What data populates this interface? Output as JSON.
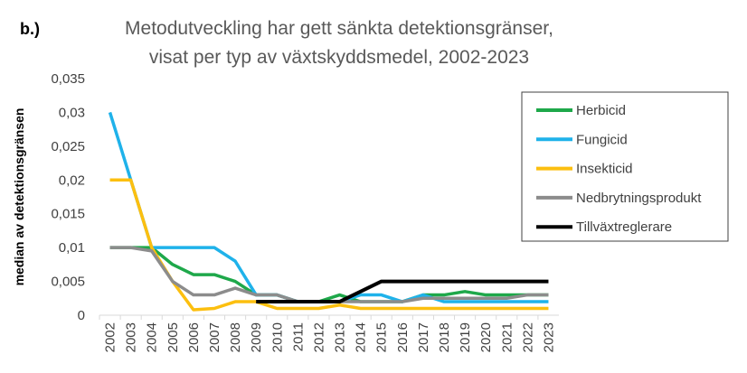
{
  "chart_data": {
    "type": "line",
    "panel_label": "b.)",
    "title_lines": [
      "Metodutveckling har gett sänkta detektionsgränser,",
      "visat per typ av växtskyddsmedel, 2002-2023"
    ],
    "y_label": "median av detektionsgränsen",
    "categories": [
      "2002",
      "2003",
      "2004",
      "2005",
      "2006",
      "2007",
      "2008",
      "2009",
      "2010",
      "2011",
      "2012",
      "2013",
      "2014",
      "2015",
      "2016",
      "2017",
      "2018",
      "2019",
      "2020",
      "2021",
      "2022",
      "2023"
    ],
    "ylim": [
      0,
      0.035
    ],
    "yticks": [
      0,
      {
        "value": 0.005,
        "label": "0,005"
      },
      {
        "value": 0.01,
        "label": "0,01"
      },
      {
        "value": 0.015,
        "label": "0,015"
      },
      {
        "value": 0.02,
        "label": "0,02"
      },
      {
        "value": 0.025,
        "label": "0,025"
      },
      {
        "value": 0.03,
        "label": "0,03"
      },
      {
        "value": 0.035,
        "label": "0,035"
      }
    ],
    "grid": false,
    "legend": "right",
    "series": [
      {
        "name": "Herbicid",
        "color": "#1ea84a",
        "values": [
          0.01,
          0.01,
          0.01,
          0.0075,
          0.006,
          0.006,
          0.005,
          0.003,
          0.003,
          0.002,
          0.002,
          0.003,
          0.002,
          0.002,
          0.002,
          0.003,
          0.003,
          0.0035,
          0.003,
          0.003,
          0.003,
          0.003
        ]
      },
      {
        "name": "Fungicid",
        "color": "#1fb2ea",
        "values": [
          0.03,
          0.02,
          0.01,
          0.01,
          0.01,
          0.01,
          0.008,
          0.003,
          0.003,
          0.002,
          0.002,
          0.002,
          0.003,
          0.003,
          0.002,
          0.003,
          0.002,
          0.002,
          0.002,
          0.002,
          0.002,
          0.002
        ]
      },
      {
        "name": "Insekticid",
        "color": "#fcbf0f",
        "values": [
          0.02,
          0.02,
          0.01,
          0.005,
          0.0008,
          0.001,
          0.002,
          0.002,
          0.001,
          0.001,
          0.001,
          0.0015,
          0.001,
          0.001,
          0.001,
          0.001,
          0.001,
          0.001,
          0.001,
          0.001,
          0.001,
          0.001
        ]
      },
      {
        "name": "Nedbrytningsprodukt",
        "color": "#8c8c8c",
        "values": [
          0.01,
          0.01,
          0.0095,
          0.005,
          0.003,
          0.003,
          0.004,
          0.003,
          0.003,
          0.002,
          0.002,
          0.002,
          0.002,
          0.002,
          0.002,
          0.0025,
          0.0025,
          0.0025,
          0.0025,
          0.0025,
          0.003,
          0.003
        ]
      },
      {
        "name": "Tillväxtreglerare",
        "color": "#000000",
        "values": [
          null,
          null,
          null,
          null,
          null,
          null,
          null,
          0.002,
          0.002,
          0.002,
          0.002,
          0.002,
          0.0035,
          0.005,
          0.005,
          0.005,
          0.005,
          0.005,
          0.005,
          0.005,
          0.005,
          0.005
        ]
      }
    ]
  }
}
